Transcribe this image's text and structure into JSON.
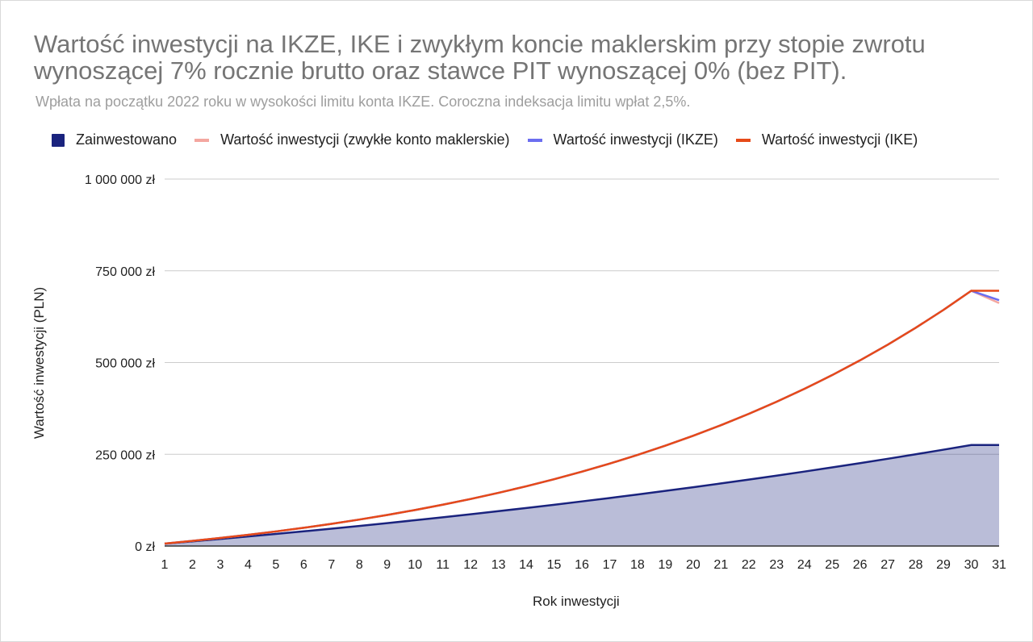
{
  "chart_data": {
    "type": "line",
    "title": "Wartość inwestycji na IKZE, IKE i zwykłym koncie maklerskim przy stopie zwrotu wynoszącej 7% rocznie brutto oraz stawce PIT wynoszącej 0% (bez PIT).",
    "subtitle": "Wpłata na początku 2022 roku w wysokości limitu konta IKZE. Coroczna indeksacja limitu wpłat 2,5%.",
    "xlabel": "Rok inwestycji",
    "ylabel": "Wartość inwestycji (PLN)",
    "x": [
      1,
      2,
      3,
      4,
      5,
      6,
      7,
      8,
      9,
      10,
      11,
      12,
      13,
      14,
      15,
      16,
      17,
      18,
      19,
      20,
      21,
      22,
      23,
      24,
      25,
      26,
      27,
      28,
      29,
      30,
      31
    ],
    "ylim": [
      0,
      1000000
    ],
    "yticks": [
      0,
      250000,
      500000,
      750000,
      1000000
    ],
    "ytick_labels": [
      "0 zł",
      "250 000 zł",
      "500 000 zł",
      "750 000 zł",
      "1 000 000 zł"
    ],
    "grid": true,
    "legend_position": "top",
    "series": [
      {
        "name": "Zainwestowano",
        "style": "area",
        "color": "#1a237e",
        "values": [
          6272,
          12701,
          19291,
          26045,
          32968,
          40064,
          47338,
          54793,
          62435,
          70268,
          78297,
          86527,
          94962,
          103608,
          112471,
          121555,
          130866,
          140410,
          150193,
          160220,
          170498,
          181033,
          191832,
          202900,
          214245,
          225874,
          237793,
          250011,
          262534,
          275370,
          275370
        ]
      },
      {
        "name": "Wartość inwestycji (zwykłe konto maklerskie)",
        "style": "line",
        "color": "#f4a7a0",
        "values": [
          6711,
          13998,
          21900,
          30456,
          39710,
          49707,
          60494,
          72121,
          84643,
          98118,
          112604,
          128166,
          144869,
          162787,
          181995,
          202575,
          224613,
          248202,
          273439,
          300428,
          329281,
          360117,
          393063,
          428256,
          465840,
          505972,
          548821,
          594568,
          643405,
          695541,
          662000
        ]
      },
      {
        "name": "Wartość inwestycji (IKZE)",
        "style": "line",
        "color": "#6b6ef0",
        "values": [
          6711,
          13998,
          21900,
          30456,
          39710,
          49707,
          60494,
          72121,
          84643,
          98118,
          112604,
          128166,
          144869,
          162787,
          181995,
          202575,
          224613,
          248202,
          273439,
          300428,
          329281,
          360117,
          393063,
          428256,
          465840,
          505972,
          548821,
          594568,
          643405,
          695541,
          670000
        ]
      },
      {
        "name": "Wartość inwestycji (IKE)",
        "style": "line",
        "color": "#e64a19",
        "values": [
          6711,
          13998,
          21900,
          30456,
          39710,
          49707,
          60494,
          72121,
          84643,
          98118,
          112604,
          128166,
          144869,
          162787,
          181995,
          202575,
          224613,
          248202,
          273439,
          300428,
          329281,
          360117,
          393063,
          428256,
          465840,
          505972,
          548821,
          594568,
          643405,
          695541,
          695541
        ]
      }
    ]
  }
}
